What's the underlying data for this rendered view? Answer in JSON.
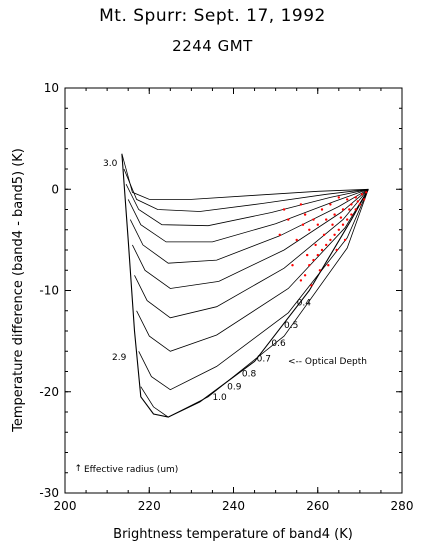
{
  "title": "Mt. Spurr: Sept. 17, 1992",
  "subtitle": "2244 GMT",
  "chart_data": {
    "type": "line",
    "xlabel": "Brightness temperature of band4 (K)",
    "ylabel": "Temperature difference (band4 - band5) (K)",
    "xlim": [
      200,
      280
    ],
    "ylim": [
      -30,
      10
    ],
    "xticks": [
      "200",
      "220",
      "240",
      "260",
      "280"
    ],
    "yticks": [
      "10",
      "0",
      "-10",
      "-20",
      "-30"
    ],
    "grid": false,
    "annotations": {
      "optical_depth": "<-- Optical Depth",
      "effective_radius": "Effective radius (um)"
    },
    "radius_labels": [
      "3.0",
      "2.9"
    ],
    "optical_depth_labels": [
      "0.4",
      "0.5",
      "0.6",
      "0.7",
      "0.8",
      "0.9",
      "1.0"
    ],
    "series": [
      {
        "kind": "radius-curve",
        "values": [
          [
            213.5,
            3.5
          ],
          [
            216,
            -0.3
          ],
          [
            220,
            -1.0
          ],
          [
            230,
            -1.0
          ],
          [
            245,
            -0.6
          ],
          [
            260,
            -0.2
          ],
          [
            272,
            0
          ]
        ]
      },
      {
        "kind": "radius-curve",
        "values": [
          [
            214,
            2.0
          ],
          [
            217,
            -1.0
          ],
          [
            222,
            -2.0
          ],
          [
            232,
            -2.2
          ],
          [
            247,
            -1.4
          ],
          [
            262,
            -0.5
          ],
          [
            272,
            0
          ]
        ]
      },
      {
        "kind": "radius-curve",
        "values": [
          [
            214.5,
            0.5
          ],
          [
            217.5,
            -2.0
          ],
          [
            223,
            -3.5
          ],
          [
            234,
            -3.6
          ],
          [
            249,
            -2.3
          ],
          [
            263,
            -0.8
          ],
          [
            272,
            0
          ]
        ]
      },
      {
        "kind": "radius-curve",
        "values": [
          [
            215,
            -1.0
          ],
          [
            218,
            -3.5
          ],
          [
            224,
            -5.2
          ],
          [
            235,
            -5.2
          ],
          [
            250,
            -3.4
          ],
          [
            264,
            -1.2
          ],
          [
            272,
            0
          ]
        ]
      },
      {
        "kind": "radius-curve",
        "values": [
          [
            215.5,
            -3.0
          ],
          [
            218.5,
            -5.5
          ],
          [
            224.5,
            -7.3
          ],
          [
            236,
            -7.0
          ],
          [
            251,
            -4.6
          ],
          [
            265,
            -1.7
          ],
          [
            272,
            0
          ]
        ]
      },
      {
        "kind": "radius-curve",
        "values": [
          [
            216,
            -5.5
          ],
          [
            219,
            -8.0
          ],
          [
            225,
            -9.8
          ],
          [
            236.5,
            -9.1
          ],
          [
            252,
            -6.0
          ],
          [
            265.5,
            -2.3
          ],
          [
            272,
            0
          ]
        ]
      },
      {
        "kind": "radius-curve",
        "values": [
          [
            216.5,
            -8.5
          ],
          [
            219.5,
            -11.0
          ],
          [
            225,
            -12.7
          ],
          [
            236,
            -11.6
          ],
          [
            252,
            -7.8
          ],
          [
            266,
            -3.0
          ],
          [
            272,
            0
          ]
        ]
      },
      {
        "kind": "radius-curve",
        "values": [
          [
            217,
            -12.0
          ],
          [
            220,
            -14.5
          ],
          [
            225,
            -16.0
          ],
          [
            236,
            -14.4
          ],
          [
            253,
            -9.8
          ],
          [
            266.5,
            -3.8
          ],
          [
            272,
            0
          ]
        ]
      },
      {
        "kind": "radius-curve",
        "values": [
          [
            217.5,
            -16.0
          ],
          [
            220.5,
            -18.5
          ],
          [
            225,
            -19.8
          ],
          [
            236,
            -17.5
          ],
          [
            253,
            -12.2
          ],
          [
            267,
            -4.8
          ],
          [
            272,
            0
          ]
        ]
      },
      {
        "kind": "radius-curve",
        "values": [
          [
            218,
            -19.5
          ],
          [
            221,
            -21.5
          ],
          [
            224.5,
            -22.5
          ],
          [
            234,
            -20.5
          ],
          [
            252,
            -14.5
          ],
          [
            267,
            -5.8
          ],
          [
            272,
            0
          ]
        ]
      },
      {
        "kind": "boundary",
        "values": [
          [
            213.5,
            3.5
          ],
          [
            215,
            -5
          ],
          [
            216.5,
            -14
          ],
          [
            218,
            -20.5
          ],
          [
            221,
            -22.2
          ],
          [
            224.5,
            -22.5
          ],
          [
            232,
            -21
          ],
          [
            245,
            -17
          ],
          [
            258,
            -10
          ],
          [
            268,
            -3
          ],
          [
            272,
            0
          ]
        ]
      }
    ],
    "scatter": [
      [
        256,
        -9
      ],
      [
        257,
        -8.5
      ],
      [
        258,
        -7.5
      ],
      [
        259,
        -7
      ],
      [
        260,
        -6.5
      ],
      [
        261,
        -6
      ],
      [
        262,
        -5.5
      ],
      [
        263,
        -5
      ],
      [
        264,
        -4.5
      ],
      [
        265,
        -4
      ],
      [
        266,
        -3.5
      ],
      [
        267,
        -3
      ],
      [
        268,
        -2.5
      ],
      [
        269,
        -2
      ],
      [
        270,
        -1.5
      ],
      [
        271,
        -1
      ],
      [
        257.5,
        -6.5
      ],
      [
        259.5,
        -5.5
      ],
      [
        261.5,
        -4.5
      ],
      [
        263.5,
        -3.5
      ],
      [
        265.5,
        -2.8
      ],
      [
        267.5,
        -2.0
      ],
      [
        269.5,
        -1.2
      ],
      [
        258,
        -4
      ],
      [
        260,
        -3.5
      ],
      [
        262,
        -3
      ],
      [
        264,
        -2.5
      ],
      [
        266,
        -2
      ],
      [
        268,
        -1.5
      ],
      [
        255,
        -5
      ],
      [
        256.5,
        -3.5
      ],
      [
        262.5,
        -7.5
      ],
      [
        260.5,
        -8
      ],
      [
        258.5,
        -9.5
      ],
      [
        254,
        -7.5
      ],
      [
        266.5,
        -5
      ],
      [
        264.5,
        -6
      ],
      [
        270.5,
        -0.5
      ],
      [
        261,
        -2
      ],
      [
        259,
        -3
      ],
      [
        257,
        -2.5
      ],
      [
        263,
        -1.5
      ],
      [
        267,
        -1
      ],
      [
        269,
        -0.8
      ],
      [
        271.5,
        -0.3
      ],
      [
        256,
        -1.5
      ],
      [
        265,
        -0.8
      ],
      [
        253,
        -3
      ],
      [
        251,
        -4.5
      ],
      [
        252,
        -2
      ]
    ]
  }
}
